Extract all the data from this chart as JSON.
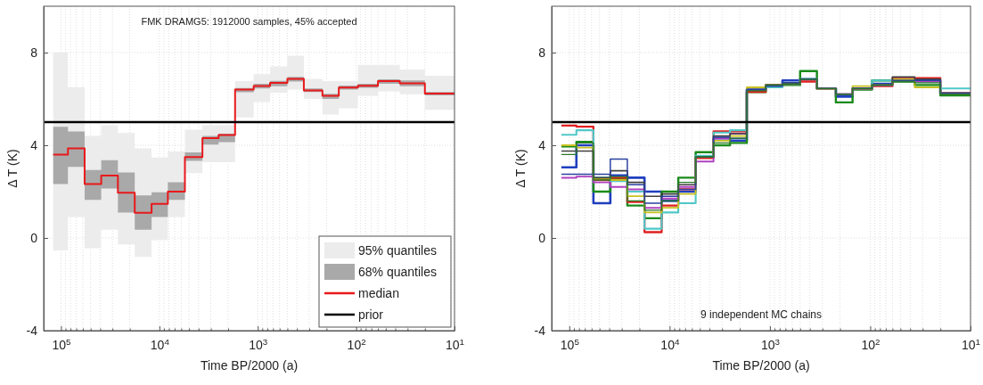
{
  "chart_data": [
    {
      "type": "step",
      "title": "FMK DRAMG5: 1912000 samples, 45% accepted",
      "xlabel": "Time BP/2000 (a)",
      "ylabel": "Δ T (K)",
      "log": "x",
      "grid": true,
      "legend": "bottom right",
      "xlim": [
        150000,
        10
      ],
      "ylim": [
        -4,
        10
      ],
      "xticks": [
        {
          "value": 10,
          "label": "10$^{1}$"
        },
        {
          "value": 20,
          "label": null
        },
        {
          "value": 30,
          "label": null
        },
        {
          "value": 40,
          "label": null
        },
        {
          "value": 50,
          "label": null
        },
        {
          "value": 60,
          "label": null
        },
        {
          "value": 70,
          "label": null
        },
        {
          "value": 80,
          "label": null
        },
        {
          "value": 90,
          "label": null
        },
        {
          "value": 100,
          "label": "10$^{2}$"
        },
        {
          "value": 200,
          "label": null
        },
        {
          "value": 300,
          "label": null
        },
        {
          "value": 400,
          "label": null
        },
        {
          "value": 500,
          "label": null
        },
        {
          "value": 600,
          "label": null
        },
        {
          "value": 700,
          "label": null
        },
        {
          "value": 800,
          "label": null
        },
        {
          "value": 900,
          "label": null
        },
        {
          "value": 1000,
          "label": "10$^{3}$"
        },
        {
          "value": 2000,
          "label": null
        },
        {
          "value": 3000,
          "label": null
        },
        {
          "value": 4000,
          "label": null
        },
        {
          "value": 5000,
          "label": null
        },
        {
          "value": 6000,
          "label": null
        },
        {
          "value": 7000,
          "label": null
        },
        {
          "value": 8000,
          "label": null
        },
        {
          "value": 9000,
          "label": null
        },
        {
          "value": 10000,
          "label": "10$^{4}$"
        },
        {
          "value": 20000,
          "label": null
        },
        {
          "value": 30000,
          "label": null
        },
        {
          "value": 40000,
          "label": null
        },
        {
          "value": 50000,
          "label": null
        },
        {
          "value": 60000,
          "label": null
        },
        {
          "value": 70000,
          "label": null
        },
        {
          "value": 80000,
          "label": null
        },
        {
          "value": 90000,
          "label": null
        },
        {
          "value": 100000,
          "label": "10$^{5}$"
        }
      ],
      "yticks": [
        -4,
        0,
        4,
        8
      ],
      "x": [
        120000,
        85000,
        57500,
        39000,
        26400,
        17800,
        12000,
        8200,
        5500,
        3650,
        2500,
        1700,
        1100,
        750,
        500,
        340,
        220,
        150,
        96,
        60,
        36,
        20,
        10
      ],
      "series": [
        {
          "name": "95% quantiles",
          "type": "area",
          "color": "#ececec",
          "values": [
            null,
            null,
            null,
            null,
            null,
            null,
            null,
            null,
            null,
            null,
            null,
            null,
            null,
            null,
            null,
            null,
            null,
            null,
            null,
            null,
            null,
            null,
            null
          ],
          "lower": [
            -0.54,
            0.9,
            -0.44,
            0.36,
            -0.28,
            -0.82,
            -0.1,
            0.9,
            2.8,
            3.27,
            3.27,
            5.2,
            5.87,
            6.27,
            6.4,
            6.0,
            5.33,
            5.6,
            6.13,
            6.33,
            6.2,
            5.53,
            5.53
          ],
          "upper": [
            8.0,
            6.5,
            4.4,
            4.87,
            4.53,
            3.87,
            3.47,
            3.73,
            4.67,
            4.87,
            4.87,
            6.77,
            7.07,
            7.4,
            7.87,
            6.87,
            6.77,
            6.77,
            7.47,
            7.47,
            7.27,
            7.0,
            7.0
          ]
        },
        {
          "name": "68% quantiles",
          "type": "area",
          "color": "#a9a9a9",
          "values": [
            null,
            null,
            null,
            null,
            null,
            null,
            null,
            null,
            null,
            null,
            null,
            null,
            null,
            null,
            null,
            null,
            null,
            null,
            null,
            null,
            null,
            null,
            null
          ],
          "lower": [
            2.33,
            3.07,
            1.64,
            2.13,
            1.1,
            0.36,
            0.9,
            1.64,
            3.33,
            4.03,
            4.13,
            6.29,
            6.45,
            6.55,
            6.75,
            6.3,
            6.0,
            6.4,
            6.48,
            6.65,
            6.55,
            6.15,
            6.15
          ],
          "upper": [
            4.8,
            4.6,
            2.93,
            3.36,
            2.83,
            1.84,
            1.97,
            2.4,
            3.69,
            4.4,
            4.5,
            6.47,
            6.65,
            6.78,
            6.95,
            6.45,
            6.22,
            6.58,
            6.65,
            6.85,
            6.8,
            6.3,
            6.3
          ]
        },
        {
          "name": "median",
          "type": "step",
          "color": "#e8191b",
          "values": [
            3.6,
            3.87,
            2.33,
            2.69,
            1.95,
            1.09,
            1.47,
            2.0,
            3.49,
            4.31,
            4.44,
            6.4,
            6.56,
            6.69,
            6.87,
            6.37,
            6.13,
            6.49,
            6.57,
            6.77,
            6.67,
            6.23,
            6.23
          ]
        }
      ],
      "ref_lines": [
        {
          "axis": "y",
          "value": 5,
          "label": "prior",
          "color": "#000000"
        }
      ]
    },
    {
      "type": "step",
      "annotations": [
        "9 independent MC chains"
      ],
      "xlabel": "Time BP/2000 (a)",
      "ylabel": "Δ T (K)",
      "log": "x",
      "grid": true,
      "xlim": [
        150000,
        10
      ],
      "ylim": [
        -4,
        10
      ],
      "xticks": [
        {
          "value": 10,
          "label": "10$^{1}$"
        },
        {
          "value": 20,
          "label": null
        },
        {
          "value": 30,
          "label": null
        },
        {
          "value": 40,
          "label": null
        },
        {
          "value": 50,
          "label": null
        },
        {
          "value": 60,
          "label": null
        },
        {
          "value": 70,
          "label": null
        },
        {
          "value": 80,
          "label": null
        },
        {
          "value": 90,
          "label": null
        },
        {
          "value": 100,
          "label": "10$^{2}$"
        },
        {
          "value": 200,
          "label": null
        },
        {
          "value": 300,
          "label": null
        },
        {
          "value": 400,
          "label": null
        },
        {
          "value": 500,
          "label": null
        },
        {
          "value": 600,
          "label": null
        },
        {
          "value": 700,
          "label": null
        },
        {
          "value": 800,
          "label": null
        },
        {
          "value": 900,
          "label": null
        },
        {
          "value": 1000,
          "label": "10$^{3}$"
        },
        {
          "value": 2000,
          "label": null
        },
        {
          "value": 3000,
          "label": null
        },
        {
          "value": 4000,
          "label": null
        },
        {
          "value": 5000,
          "label": null
        },
        {
          "value": 6000,
          "label": null
        },
        {
          "value": 7000,
          "label": null
        },
        {
          "value": 8000,
          "label": null
        },
        {
          "value": 9000,
          "label": null
        },
        {
          "value": 10000,
          "label": "10$^{4}$"
        },
        {
          "value": 20000,
          "label": null
        },
        {
          "value": 30000,
          "label": null
        },
        {
          "value": 40000,
          "label": null
        },
        {
          "value": 50000,
          "label": null
        },
        {
          "value": 60000,
          "label": null
        },
        {
          "value": 70000,
          "label": null
        },
        {
          "value": 80000,
          "label": null
        },
        {
          "value": 90000,
          "label": null
        },
        {
          "value": 100000,
          "label": "10$^{5}$"
        }
      ],
      "yticks": [
        -4,
        0,
        4,
        8
      ],
      "x": [
        120000,
        85000,
        57500,
        39000,
        26400,
        17800,
        12000,
        8200,
        5500,
        3650,
        2500,
        1700,
        1100,
        750,
        500,
        340,
        220,
        150,
        96,
        60,
        36,
        20,
        10
      ],
      "series": [
        {
          "color": "#1f3fbf",
          "values": [
            3.05,
            4.0,
            1.5,
            2.7,
            2.6,
            2.0,
            1.6,
            2.0,
            3.5,
            4.3,
            4.2,
            6.4,
            6.55,
            6.8,
            6.85,
            6.45,
            6.1,
            6.45,
            6.65,
            6.8,
            6.8,
            6.25,
            6.25
          ]
        },
        {
          "color": "#1a8a1a",
          "values": [
            3.95,
            4.15,
            2.0,
            2.55,
            1.4,
            0.85,
            2.0,
            2.6,
            3.7,
            4.0,
            4.1,
            6.3,
            6.55,
            6.6,
            7.2,
            6.45,
            5.85,
            6.4,
            6.8,
            6.75,
            6.6,
            6.15,
            6.15
          ]
        },
        {
          "color": "#e02020",
          "values": [
            4.85,
            4.8,
            2.5,
            2.6,
            1.55,
            0.25,
            1.4,
            2.1,
            3.45,
            4.6,
            4.6,
            6.3,
            6.6,
            6.65,
            6.75,
            6.45,
            6.2,
            6.45,
            6.55,
            6.9,
            6.9,
            6.25,
            6.25
          ]
        },
        {
          "color": "#50c8c8",
          "values": [
            4.45,
            4.65,
            2.6,
            2.45,
            2.0,
            0.4,
            1.1,
            1.5,
            3.55,
            4.55,
            4.65,
            6.4,
            6.5,
            6.65,
            6.85,
            6.45,
            6.2,
            6.45,
            6.8,
            6.85,
            6.75,
            6.45,
            6.45
          ]
        },
        {
          "color": "#b040c0",
          "values": [
            2.6,
            2.65,
            2.4,
            2.2,
            2.1,
            1.3,
            1.7,
            2.2,
            3.3,
            4.3,
            4.5,
            6.4,
            6.6,
            6.65,
            6.85,
            6.45,
            6.2,
            6.45,
            6.6,
            6.85,
            6.75,
            6.25,
            6.25
          ]
        },
        {
          "color": "#c8c020",
          "values": [
            4.0,
            3.9,
            2.55,
            2.5,
            1.8,
            1.1,
            1.3,
            1.9,
            3.5,
            4.2,
            4.4,
            6.5,
            6.6,
            6.65,
            6.85,
            6.45,
            6.2,
            6.55,
            6.6,
            6.85,
            6.5,
            6.25,
            6.25
          ]
        },
        {
          "color": "#404040",
          "values": [
            3.75,
            3.75,
            2.6,
            2.9,
            2.4,
            1.8,
            1.9,
            2.3,
            3.5,
            4.4,
            4.5,
            6.4,
            6.6,
            6.65,
            6.85,
            6.45,
            6.2,
            6.45,
            6.6,
            6.95,
            6.85,
            6.25,
            6.25
          ]
        },
        {
          "color": "#2a40a0",
          "values": [
            2.75,
            2.75,
            2.75,
            3.4,
            2.3,
            1.5,
            1.8,
            2.1,
            3.5,
            4.35,
            4.3,
            6.4,
            6.55,
            6.7,
            6.85,
            6.45,
            6.2,
            6.45,
            6.6,
            6.8,
            6.8,
            6.25,
            6.25
          ]
        },
        {
          "color": "#2a7a2a",
          "values": [
            3.6,
            4.1,
            2.5,
            2.65,
            1.6,
            1.2,
            1.6,
            2.4,
            3.5,
            4.1,
            4.3,
            6.35,
            6.6,
            6.65,
            6.85,
            6.45,
            6.2,
            6.45,
            6.6,
            6.75,
            6.7,
            6.2,
            6.2
          ]
        }
      ],
      "ref_lines": [
        {
          "axis": "y",
          "value": 5,
          "color": "#000000"
        }
      ]
    }
  ]
}
